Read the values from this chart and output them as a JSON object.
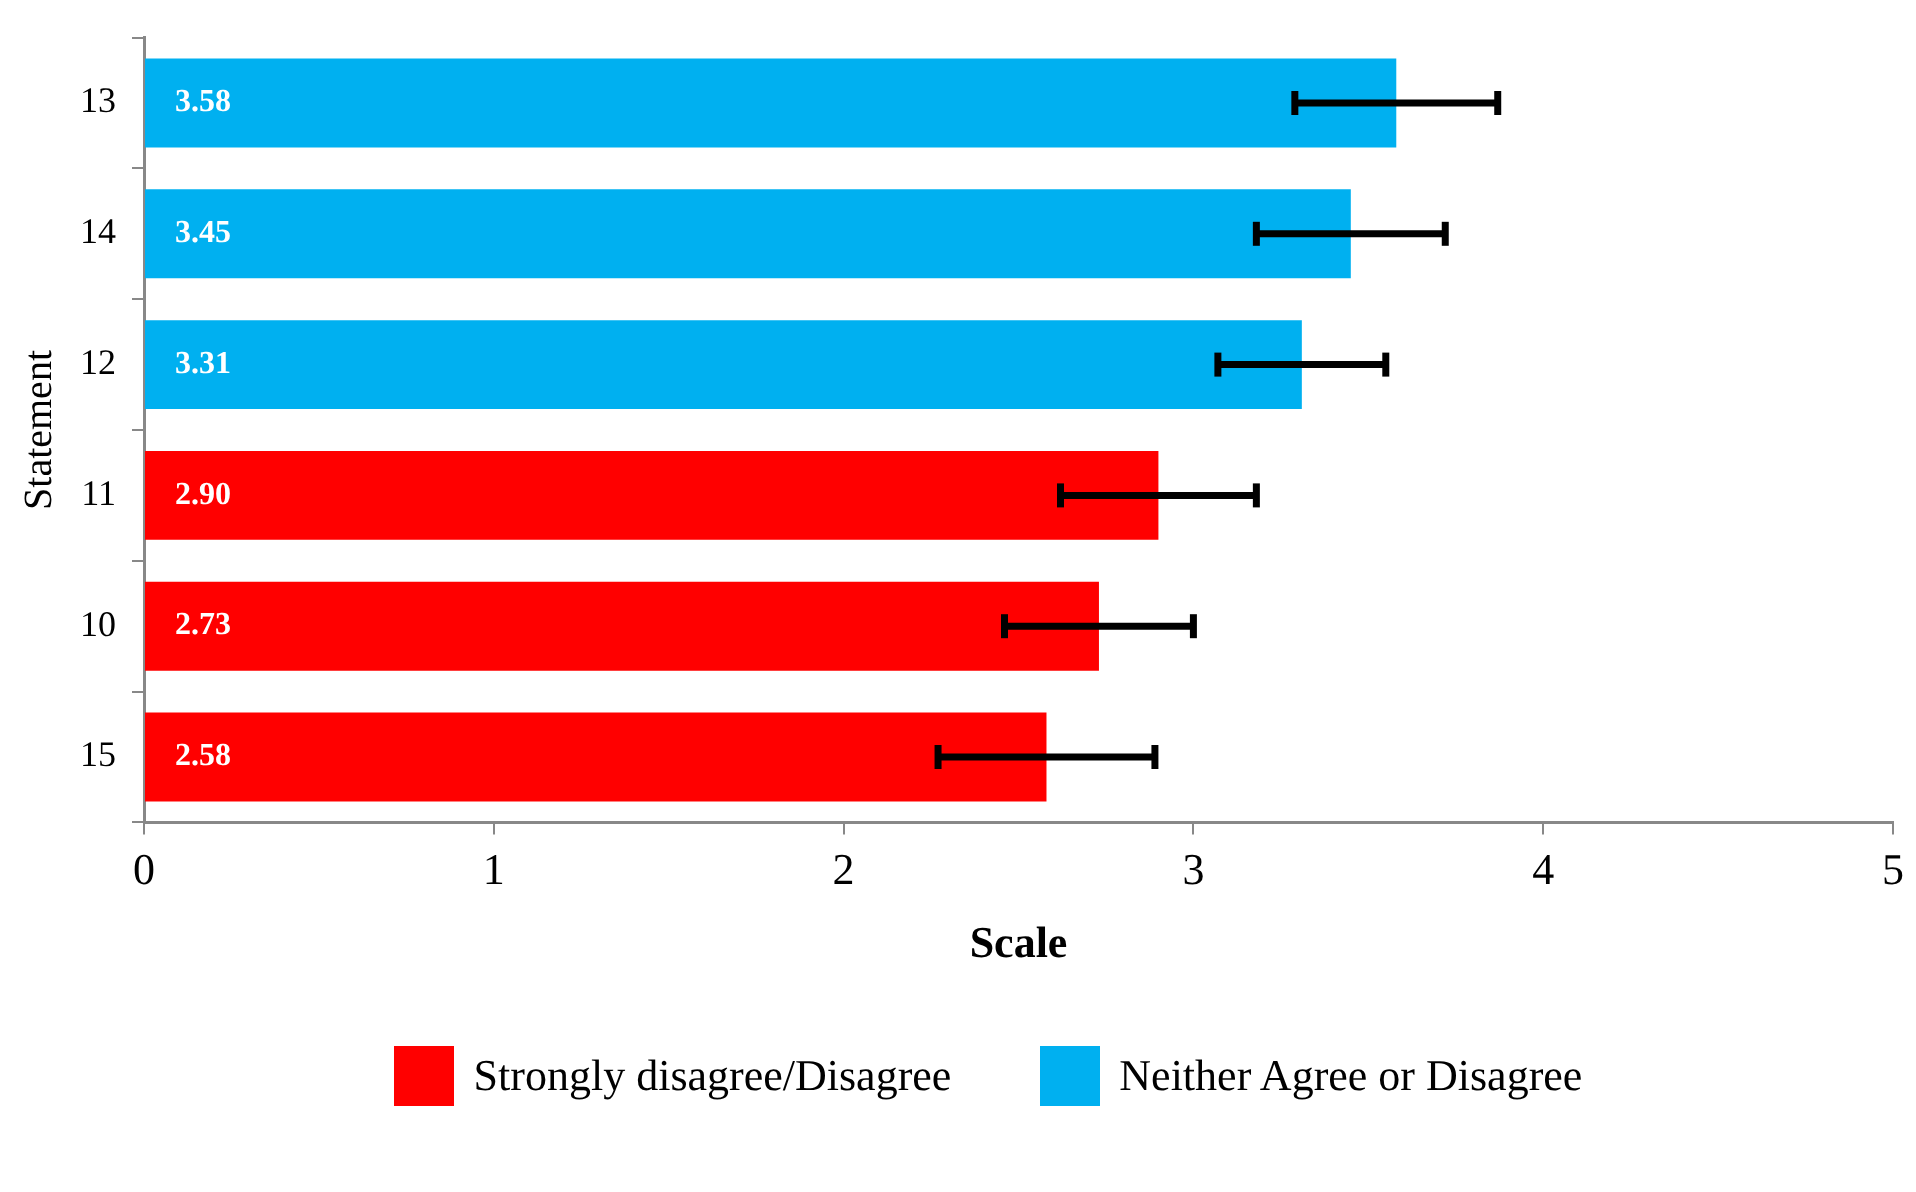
{
  "chart_data": {
    "type": "bar",
    "orientation": "horizontal",
    "xlabel": "Scale",
    "ylabel": "Statement",
    "categories": [
      "13",
      "14",
      "12",
      "11",
      "10",
      "15"
    ],
    "series": [
      {
        "name": "Strongly disagree/Disagree",
        "color": "#ff0000",
        "values": [
          null,
          null,
          null,
          2.9,
          2.73,
          2.58
        ],
        "value_labels": [
          null,
          null,
          null,
          "2.90",
          "2.73",
          "2.58"
        ],
        "errors": [
          null,
          null,
          null,
          [
            2.62,
            3.18
          ],
          [
            2.46,
            3.0
          ],
          [
            2.27,
            2.89
          ]
        ]
      },
      {
        "name": "Neither Agree or Disagree",
        "color": "#00b0f0",
        "values": [
          3.58,
          3.45,
          3.31,
          null,
          null,
          null
        ],
        "value_labels": [
          "3.58",
          "3.45",
          "3.31",
          null,
          null,
          null
        ],
        "errors": [
          [
            3.29,
            3.87
          ],
          [
            3.18,
            3.72
          ],
          [
            3.07,
            3.55
          ],
          null,
          null,
          null
        ]
      }
    ],
    "xlim": [
      0,
      5
    ],
    "xticks": [
      0,
      1,
      2,
      3,
      4,
      5
    ],
    "grid": false,
    "legend": "bottom"
  }
}
